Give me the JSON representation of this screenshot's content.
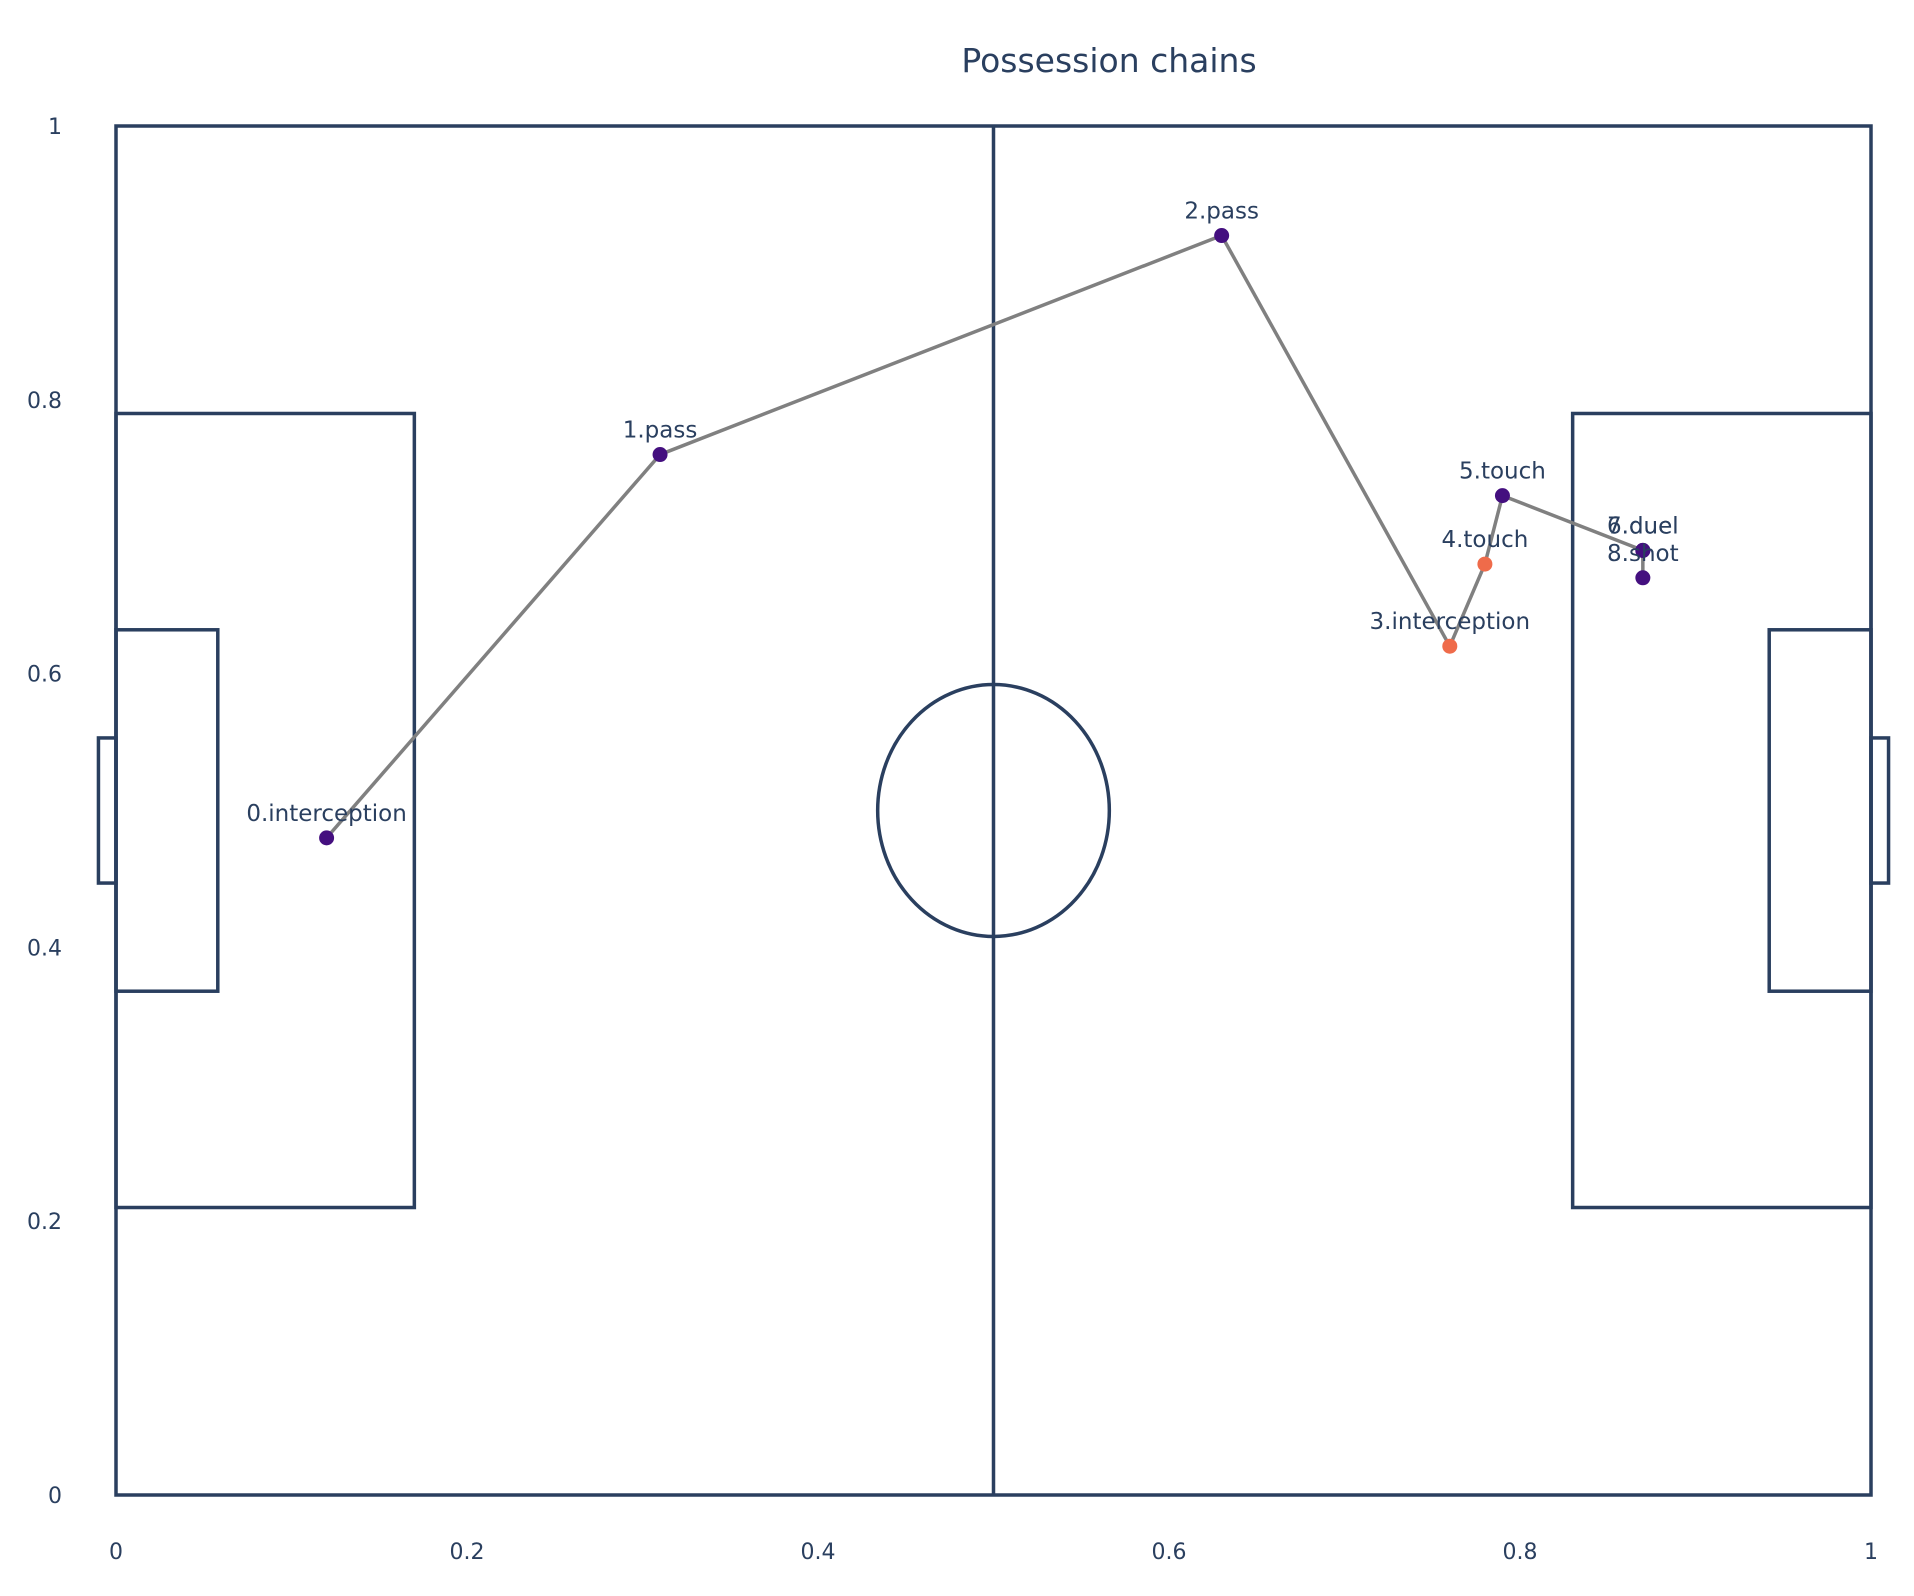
{
  "chart_data": {
    "type": "scatter",
    "title": "Possession chains",
    "xlabel": "",
    "ylabel": "",
    "xlim": [
      0,
      1
    ],
    "ylim": [
      0,
      1
    ],
    "x_ticks": [
      "0",
      "0.2",
      "0.4",
      "0.6",
      "0.8",
      "1"
    ],
    "y_ticks": [
      "0",
      "0.2",
      "0.4",
      "0.6",
      "0.8",
      "1"
    ],
    "grid": false,
    "legend": "none",
    "colors": {
      "team_a": "#440f7f",
      "team_b": "#ef6b4a",
      "chain_line": "#808080",
      "pitch_lines": "#2a3f5f"
    },
    "points": [
      {
        "label": "0.interception",
        "x": 0.12,
        "y": 0.48,
        "team": "team_a"
      },
      {
        "label": "1.pass",
        "x": 0.31,
        "y": 0.76,
        "team": "team_a"
      },
      {
        "label": "2.pass",
        "x": 0.63,
        "y": 0.92,
        "team": "team_a"
      },
      {
        "label": "3.interception",
        "x": 0.76,
        "y": 0.62,
        "team": "team_b"
      },
      {
        "label": "4.touch",
        "x": 0.78,
        "y": 0.68,
        "team": "team_b"
      },
      {
        "label": "5.touch",
        "x": 0.79,
        "y": 0.73,
        "team": "team_a"
      },
      {
        "label": "6.duel",
        "x": 0.87,
        "y": 0.69,
        "team": "team_a"
      },
      {
        "label": "7.duel",
        "x": 0.87,
        "y": 0.69,
        "team": "team_a"
      },
      {
        "label": "8.shot",
        "x": 0.87,
        "y": 0.67,
        "team": "team_a"
      }
    ]
  }
}
